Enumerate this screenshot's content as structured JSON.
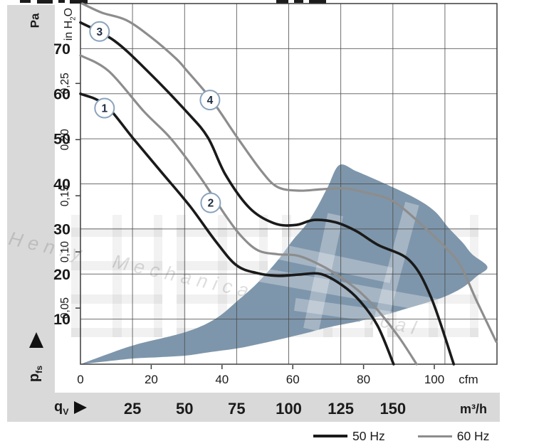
{
  "axes": {
    "pressure": {
      "title": "Pa",
      "tick_labels": [
        "70",
        "60",
        "50",
        "40",
        "30",
        "20",
        "10"
      ]
    },
    "pressure_secondary": {
      "title_parts": {
        "pre": "in H",
        "sub": "2",
        "post": "O"
      },
      "tick_labels": [
        "0,25",
        "0,20",
        "0,15",
        "0,10",
        "0,05"
      ]
    },
    "flow_primary": {
      "tick_labels": [
        "0",
        "20",
        "40",
        "60",
        "80",
        "100"
      ],
      "unit": "cfm"
    },
    "flow_secondary": {
      "symbol_main": "q",
      "symbol_sub": "V",
      "tick_labels": [
        "25",
        "50",
        "75",
        "100",
        "125",
        "150"
      ],
      "unit": "m³/h"
    },
    "pressure_symbol": {
      "main": "p",
      "sub": "fs"
    }
  },
  "legend": [
    {
      "label": "50 Hz"
    },
    {
      "label": "60 Hz"
    }
  ],
  "watermark": {
    "cjk_text": "恒瑞机电",
    "script_text": "Henry Mechanical Electrical"
  },
  "colors": {
    "band": "#d9d9d9",
    "grid": "#4a4a4a",
    "border": "#3d3d3d",
    "curve_50hz": "#1a1a1a",
    "curve_60hz": "#8d8d8d",
    "region": "#7e96ab",
    "marker_stroke": "#8aa3bd",
    "marker_text": "#1f2d3d",
    "text": "#1a1a1a"
  },
  "chart_data": {
    "type": "line",
    "x_axis": {
      "label": "qV",
      "primary_unit": "cfm",
      "primary_ticks": [
        0,
        20,
        40,
        60,
        80,
        100
      ],
      "secondary_unit": "m³/h",
      "secondary_ticks": [
        25,
        50,
        75,
        100,
        125,
        150
      ],
      "range_m3h": [
        0,
        200
      ],
      "range_cfm": [
        0,
        117.7
      ],
      "gridline_step_m3h": 25
    },
    "y_axis": {
      "label": "pfs",
      "primary_unit": "Pa",
      "primary_ticks": [
        70,
        60,
        50,
        40,
        30,
        20,
        10
      ],
      "secondary_unit": "in H2O",
      "secondary_ticks": [
        0.25,
        0.2,
        0.15,
        0.1,
        0.05
      ],
      "range_pa": [
        0,
        80
      ],
      "gridline_step_pa": 10
    },
    "series": [
      {
        "id": "1",
        "name": "curve-1-50hz",
        "hz": "50 Hz",
        "points_cfm_pa": [
          [
            0,
            60
          ],
          [
            7,
            57.5
          ],
          [
            15,
            50
          ],
          [
            23,
            42.5
          ],
          [
            31,
            35
          ],
          [
            38,
            27.5
          ],
          [
            44,
            22
          ],
          [
            50,
            20.2
          ],
          [
            56,
            19.6
          ],
          [
            62,
            19.9
          ],
          [
            68,
            20
          ],
          [
            74,
            17.5
          ],
          [
            79,
            14
          ],
          [
            84,
            8.5
          ],
          [
            88.5,
            0
          ]
        ]
      },
      {
        "id": "2",
        "name": "curve-2-60hz",
        "hz": "60 Hz",
        "points_cfm_pa": [
          [
            0,
            68.5
          ],
          [
            8,
            65
          ],
          [
            18,
            56
          ],
          [
            25.6,
            50
          ],
          [
            34,
            41.3
          ],
          [
            41,
            33
          ],
          [
            45.7,
            28.2
          ],
          [
            50.3,
            25.2
          ],
          [
            55.7,
            24.4
          ],
          [
            61.8,
            24
          ],
          [
            69,
            21.5
          ],
          [
            74.4,
            18.8
          ],
          [
            79,
            16
          ],
          [
            84,
            12
          ],
          [
            90,
            6
          ],
          [
            95,
            0
          ]
        ]
      },
      {
        "id": "3",
        "name": "curve-3-50hz",
        "hz": "50 Hz",
        "points_cfm_pa": [
          [
            0,
            75.8
          ],
          [
            9.5,
            71.8
          ],
          [
            19,
            65
          ],
          [
            30,
            56
          ],
          [
            36,
            50.3
          ],
          [
            41,
            42
          ],
          [
            48,
            34.5
          ],
          [
            55,
            31.2
          ],
          [
            61,
            30.9
          ],
          [
            66,
            32
          ],
          [
            72,
            31.5
          ],
          [
            78,
            29.5
          ],
          [
            84,
            26.5
          ],
          [
            93,
            23
          ],
          [
            99,
            15
          ],
          [
            105.5,
            0
          ]
        ]
      },
      {
        "id": "4",
        "name": "curve-4-60hz",
        "hz": "60 Hz",
        "points_cfm_pa": [
          [
            0.5,
            80
          ],
          [
            6,
            78
          ],
          [
            13,
            76.3
          ],
          [
            20,
            72.5
          ],
          [
            27,
            67.8
          ],
          [
            30.2,
            65
          ],
          [
            37,
            58.7
          ],
          [
            44.3,
            50.3
          ],
          [
            51.1,
            42.9
          ],
          [
            55.7,
            39.3
          ],
          [
            61.8,
            38.5
          ],
          [
            68,
            38.8
          ],
          [
            74.4,
            39
          ],
          [
            81,
            38
          ],
          [
            88.5,
            36.1
          ],
          [
            98,
            29.8
          ],
          [
            103,
            26
          ],
          [
            107.4,
            21.9
          ],
          [
            112,
            14
          ],
          [
            117.5,
            5
          ]
        ]
      }
    ],
    "markers": [
      {
        "label": "1",
        "cfm": 6.8,
        "pa": 56.8
      },
      {
        "label": "2",
        "cfm": 36.8,
        "pa": 35.8
      },
      {
        "label": "3",
        "cfm": 5.4,
        "pa": 73.8
      },
      {
        "label": "4",
        "cfm": 36.6,
        "pa": 58.6
      }
    ],
    "operating_range": {
      "outline_cfm_pa": [
        [
          0,
          0
        ],
        [
          7.5,
          2.2
        ],
        [
          15.5,
          4.3
        ],
        [
          29.6,
          7.1
        ],
        [
          38,
          10
        ],
        [
          44.3,
          14
        ],
        [
          50,
          18
        ],
        [
          55.7,
          23
        ],
        [
          60,
          27.5
        ],
        [
          63.8,
          31
        ],
        [
          67,
          35
        ],
        [
          70,
          39.5
        ],
        [
          73.2,
          44.2
        ],
        [
          78,
          42.8
        ],
        [
          83.9,
          40.8
        ],
        [
          94,
          37.1
        ],
        [
          100,
          34
        ],
        [
          104,
          30.3
        ],
        [
          108,
          27
        ],
        [
          110.7,
          24.4
        ],
        [
          115,
          21.6
        ],
        [
          112,
          19.5
        ],
        [
          108,
          17
        ],
        [
          103,
          15
        ],
        [
          98,
          13.7
        ],
        [
          92,
          12.3
        ],
        [
          86,
          10.9
        ],
        [
          79,
          9.6
        ],
        [
          73.2,
          8.7
        ],
        [
          68,
          7.8
        ],
        [
          63.8,
          6.9
        ],
        [
          58,
          5.8
        ],
        [
          50,
          4.4
        ],
        [
          44.3,
          3.5
        ],
        [
          36,
          2.6
        ],
        [
          29.6,
          1.9
        ],
        [
          22,
          1.55
        ],
        [
          15.5,
          1.3
        ],
        [
          8,
          0.7
        ]
      ]
    }
  }
}
